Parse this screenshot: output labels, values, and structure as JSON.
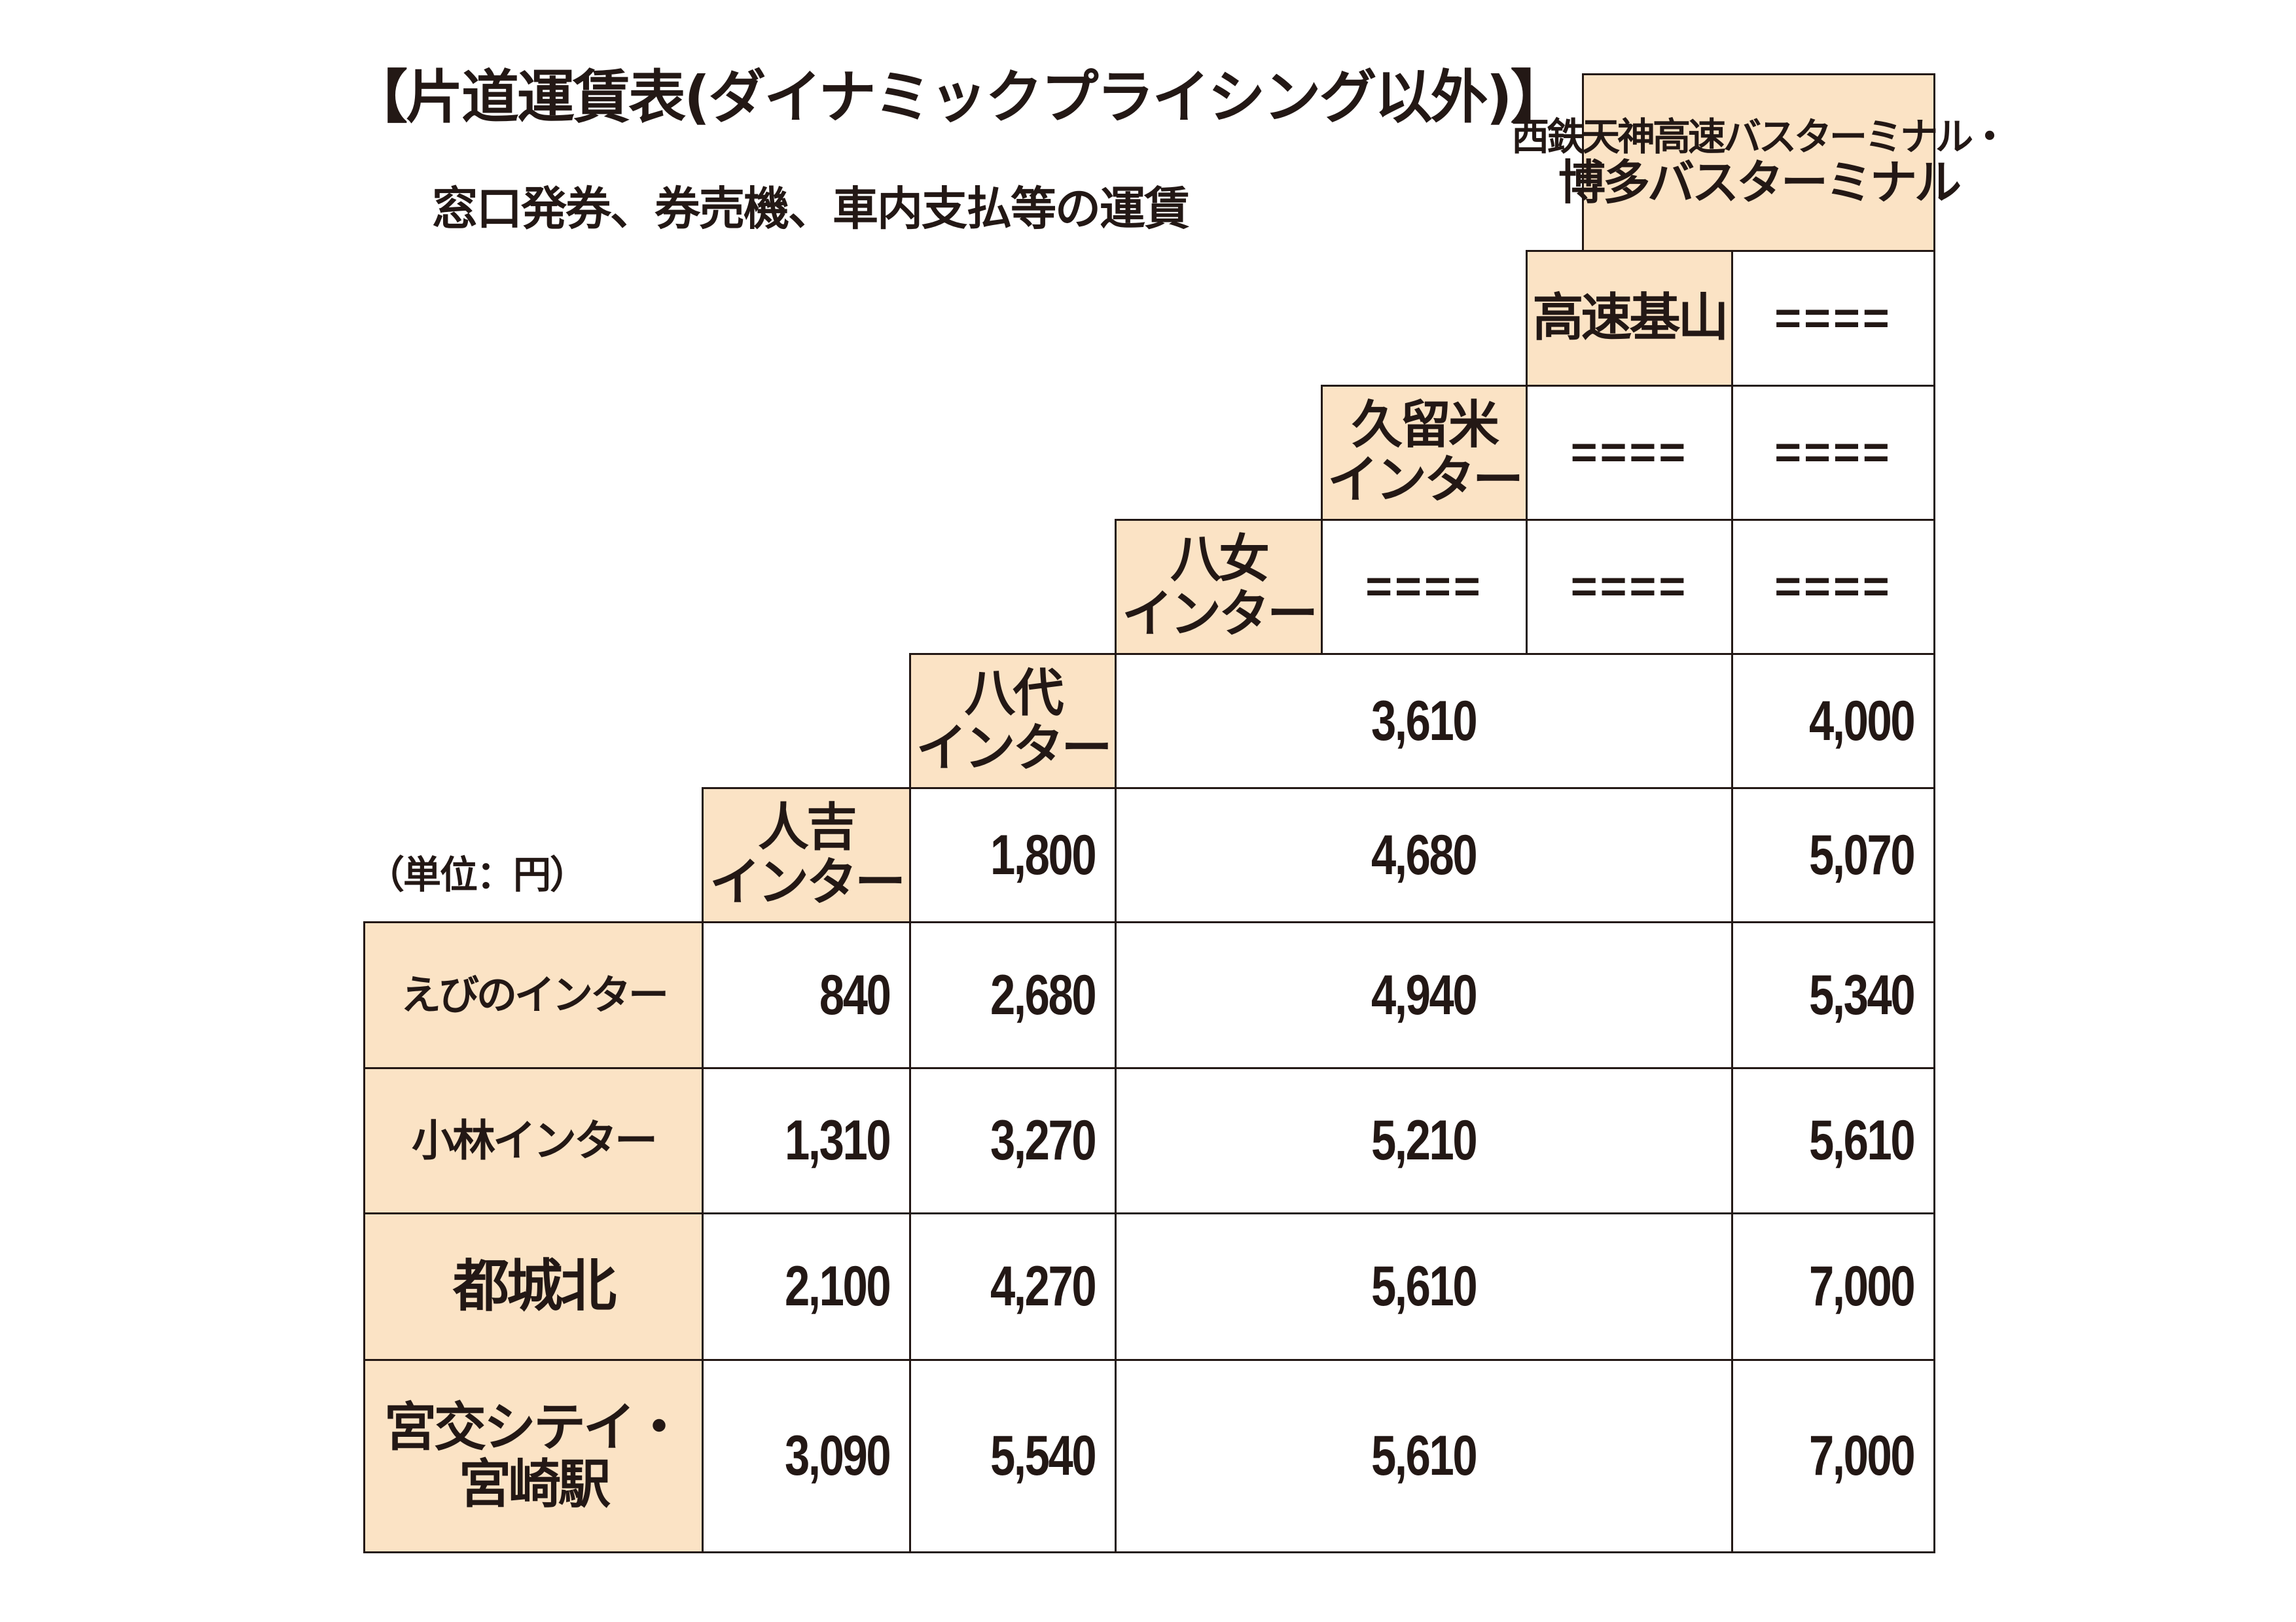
{
  "title": "【片道運賃表(ダイナミックプライシング以外)】",
  "subtitle": "窓口発券、券売機、車内支払等の運賃",
  "unit_note": "（単位：円）",
  "column_stops": {
    "hitoyoshi": [
      "人吉",
      "インター"
    ],
    "yatsushiro": [
      "八代",
      "インター"
    ],
    "yame": [
      "八女",
      "インター"
    ],
    "kurume": [
      "久留米",
      "インター"
    ],
    "kosoku_kiyama": [
      "高速基山"
    ],
    "fukuoka": [
      "西鉄天神高速バスターミナル・",
      "博多バスターミナル"
    ]
  },
  "upper_rows": {
    "yame_row": [
      "====",
      "====",
      "===="
    ],
    "kurume_row": [
      "====",
      "===="
    ],
    "kiyama_row": [
      "===="
    ],
    "yatsushiro_row": {
      "merged": "3,610",
      "fukuoka": "4,000"
    },
    "hitoyoshi_row": {
      "yatsushiro": "1,800",
      "merged": "4,680",
      "fukuoka": "5,070"
    }
  },
  "rows": [
    {
      "name": [
        "えびのインター"
      ],
      "hitoyoshi": "840",
      "yatsushiro": "2,680",
      "merged": "4,940",
      "fukuoka": "5,340"
    },
    {
      "name": [
        "小林インター"
      ],
      "hitoyoshi": "1,310",
      "yatsushiro": "3,270",
      "merged": "5,210",
      "fukuoka": "5,610"
    },
    {
      "name": [
        "都城北"
      ],
      "hitoyoshi": "2,100",
      "yatsushiro": "4,270",
      "merged": "5,610",
      "fukuoka": "7,000"
    },
    {
      "name": [
        "宮交シテイ・",
        "宮崎駅"
      ],
      "hitoyoshi": "3,090",
      "yatsushiro": "5,540",
      "merged": "5,610",
      "fukuoka": "7,000"
    }
  ],
  "colors": {
    "header_bg": "#fbe3c5",
    "line": "#231815",
    "text": "#231815"
  }
}
